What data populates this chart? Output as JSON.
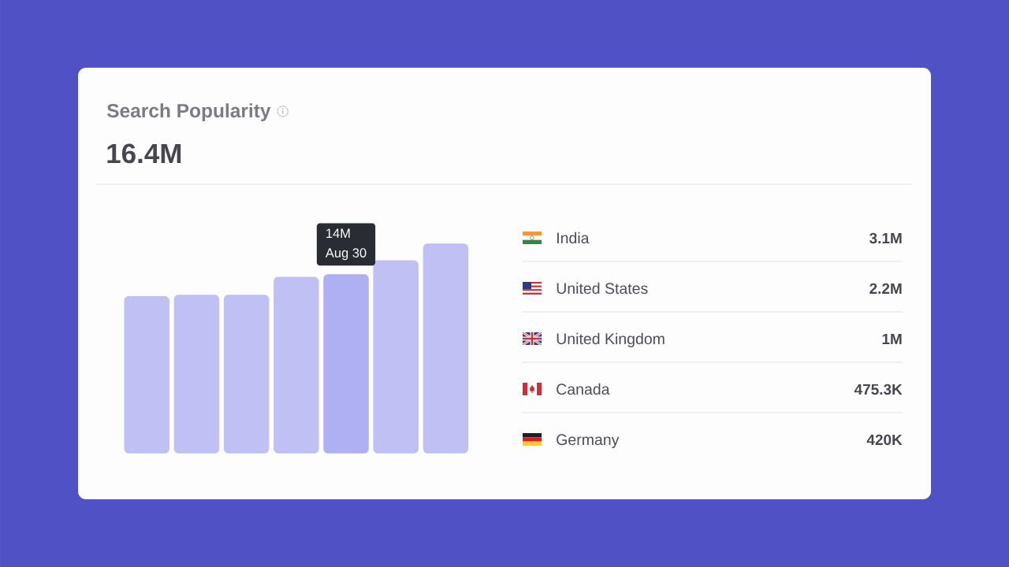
{
  "chart_data": [
    {
      "type": "bar",
      "title": "Search Popularity",
      "subtitle": "16.4M",
      "categories": [
        null,
        null,
        null,
        null,
        "Aug 30",
        null,
        null
      ],
      "values": [
        12300000,
        12400000,
        12400000,
        13800000,
        14000000,
        15100000,
        16400000
      ],
      "value_labels": [
        null,
        null,
        null,
        null,
        "14M",
        null,
        null
      ],
      "colors": [
        "#c0c0f5",
        "#c0c0f5",
        "#c0c0f5",
        "#c0c0f5",
        "#afaff3",
        "#c0c0f5",
        "#c0c0f5"
      ],
      "ylim": [
        0,
        18000000
      ],
      "tick_labels": false
    },
    {
      "type": "other",
      "categories": [
        "India",
        "United States",
        "United Kingdom",
        "Canada",
        "Germany"
      ],
      "value_labels": [
        "3.1M",
        "2.2M",
        "1M",
        "475.3K",
        "420K"
      ]
    }
  ]
}
